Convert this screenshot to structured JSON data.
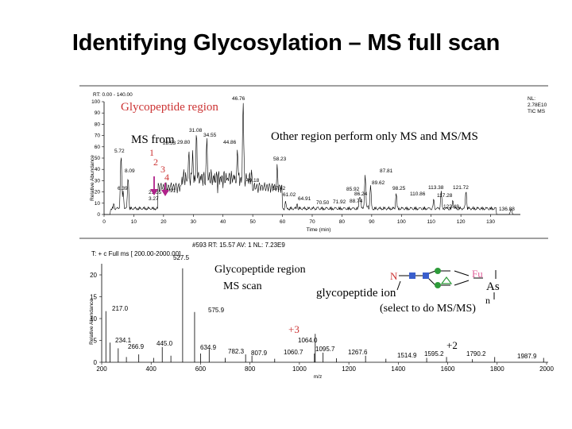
{
  "slide_title": "Identifying Glycosylation – MS full scan",
  "chromatogram": {
    "header": "RT: 0.00 - 140.00",
    "nl_line1": "NL:",
    "nl_line2": "2.78E10",
    "nl_line3": "TIC MS",
    "ylabel": "Relative Abundance",
    "xlabel": "Time (min)",
    "y_ticks": [
      "100",
      "90",
      "80",
      "70",
      "60",
      "50",
      "40",
      "30",
      "20",
      "10",
      "0"
    ],
    "x_ticks": [
      "0",
      "10",
      "20",
      "30",
      "40",
      "50",
      "60",
      "70",
      "80",
      "90",
      "100",
      "110",
      "120",
      "130"
    ],
    "peak_labels": [
      "46.76",
      "31.08",
      "34.55",
      "28.53",
      "29.80",
      "44.86",
      "5.72",
      "58.23",
      "8.09",
      "87.81",
      "49.18",
      "6.39",
      "21.55",
      "23.91",
      "3.27",
      "57.42",
      "61.02",
      "64.91",
      "70.50",
      "71.92",
      "86.24",
      "88.74",
      "85.92",
      "89.62",
      "98.25",
      "110.86",
      "113.38",
      "117.28",
      "121.72",
      "122.48",
      "136.88"
    ],
    "region_label": "Glycopeptide region",
    "other_label": "Other region perform only MS and MS/MS",
    "ms_from": "MS from",
    "markers": [
      "1",
      "2",
      "3",
      "4"
    ]
  },
  "spectrum": {
    "scan_info": "#593   RT: 15.57   AV: 1  NL: 7.23E9",
    "filter": "T: + c Full ms [ 200.00-2000.00]",
    "ylabel": "Relative Abundance",
    "xlabel": "m/z",
    "y_ticks": [
      "20",
      "15",
      "10",
      "5",
      "0"
    ],
    "x_ticks": [
      "200",
      "400",
      "600",
      "800",
      "1000",
      "1200",
      "1400",
      "1600",
      "1800",
      "2000"
    ],
    "peak_labels": [
      "527.5",
      "217.0",
      "575.9",
      "234.1",
      "266.9",
      "445.0",
      "634.9",
      "782.3",
      "807.9",
      "1064.0",
      "1060.7",
      "1095.7",
      "1267.6",
      "1514.9",
      "1595.2",
      "1790.2",
      "1987.9"
    ],
    "region_label": "Glycopeptide region",
    "scan_label": "MS scan",
    "ion_label": "glycopeptide ion",
    "select_label": "(select to do MS/MS)",
    "charge_3": "+3",
    "charge_2": "+2"
  },
  "glycan": {
    "n_label": "N",
    "fu_label": "Fu",
    "as_label": "As",
    "n_sub": "n"
  },
  "colors": {
    "accent_red": "#cc3333",
    "arrow_purple": "#b0228a",
    "hexnac_blue": "#3a5fcd",
    "hexose_green": "#2e9b3a",
    "glycan_pink": "#e0609a"
  }
}
